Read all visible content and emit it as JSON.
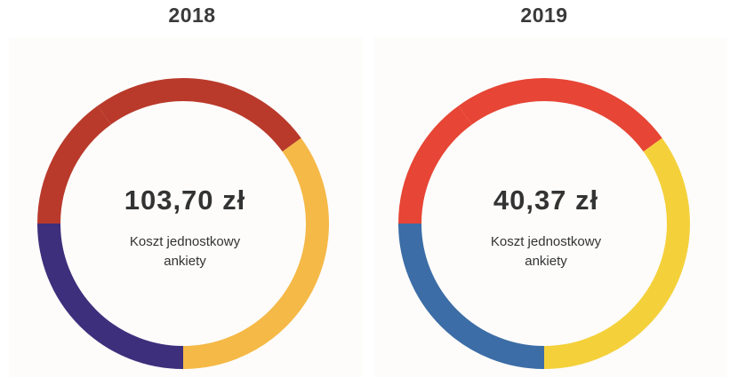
{
  "chart_data": [
    {
      "type": "pie",
      "title": "2018",
      "center_value": "103,70 zł",
      "center_label": "Koszt jednostkowy ankiety",
      "slices": [
        {
          "value": 0.25,
          "color": "#f5b947"
        },
        {
          "value": 0.25,
          "color": "#3e2f7c"
        },
        {
          "value": 0.15,
          "color": "#b93a2b"
        },
        {
          "value": 0.25,
          "color": "#b93a2b"
        },
        {
          "value": 0.1,
          "color": "#f5b947"
        }
      ]
    },
    {
      "type": "pie",
      "title": "2019",
      "center_value": "40,37 zł",
      "center_label": "Koszt jednostkowy ankiety",
      "slices": [
        {
          "value": 0.25,
          "color": "#f4d13b"
        },
        {
          "value": 0.25,
          "color": "#3c6da6"
        },
        {
          "value": 0.15,
          "color": "#e74535"
        },
        {
          "value": 0.25,
          "color": "#e74535"
        },
        {
          "value": 0.1,
          "color": "#f4d13b"
        }
      ]
    }
  ]
}
